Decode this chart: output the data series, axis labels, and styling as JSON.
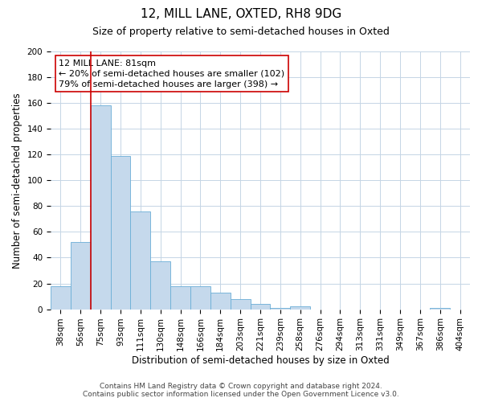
{
  "title": "12, MILL LANE, OXTED, RH8 9DG",
  "subtitle": "Size of property relative to semi-detached houses in Oxted",
  "xlabel": "Distribution of semi-detached houses by size in Oxted",
  "ylabel": "Number of semi-detached properties",
  "bin_labels": [
    "38sqm",
    "56sqm",
    "75sqm",
    "93sqm",
    "111sqm",
    "130sqm",
    "148sqm",
    "166sqm",
    "184sqm",
    "203sqm",
    "221sqm",
    "239sqm",
    "258sqm",
    "276sqm",
    "294sqm",
    "313sqm",
    "331sqm",
    "349sqm",
    "367sqm",
    "386sqm",
    "404sqm"
  ],
  "bar_values": [
    18,
    52,
    158,
    119,
    76,
    37,
    18,
    18,
    13,
    8,
    4,
    1,
    2,
    0,
    0,
    0,
    0,
    0,
    0,
    1,
    0
  ],
  "bar_color": "#c5d9ec",
  "bar_edge_color": "#6aaed6",
  "ylim": [
    0,
    200
  ],
  "yticks": [
    0,
    20,
    40,
    60,
    80,
    100,
    120,
    140,
    160,
    180,
    200
  ],
  "vline_position": 1.5,
  "vline_color": "#cc0000",
  "annotation_line1": "12 MILL LANE: 81sqm",
  "annotation_line2": "← 20% of semi-detached houses are smaller (102)",
  "annotation_line3": "79% of semi-detached houses are larger (398) →",
  "annotation_box_color": "#ffffff",
  "annotation_box_edge_color": "#cc0000",
  "footer_line1": "Contains HM Land Registry data © Crown copyright and database right 2024.",
  "footer_line2": "Contains public sector information licensed under the Open Government Licence v3.0.",
  "background_color": "#ffffff",
  "grid_color": "#c5d5e5",
  "title_fontsize": 11,
  "subtitle_fontsize": 9,
  "axis_label_fontsize": 8.5,
  "tick_fontsize": 7.5,
  "annotation_fontsize": 8,
  "footer_fontsize": 6.5
}
